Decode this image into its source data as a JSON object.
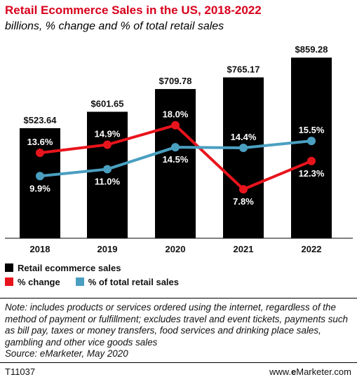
{
  "title": "Retail Ecommerce Sales in the US, 2018-2022",
  "subtitle": "billions, % change and % of total retail sales",
  "chart_data": {
    "type": "bar",
    "categories": [
      "2018",
      "2019",
      "2020",
      "2021",
      "2022"
    ],
    "bars": {
      "name": "Retail ecommerce sales",
      "color": "#000000",
      "values": [
        523.64,
        601.65,
        709.78,
        765.17,
        859.28
      ],
      "labels": [
        "$523.64",
        "$601.65",
        "$709.78",
        "$765.17",
        "$859.28"
      ]
    },
    "lines": [
      {
        "name": "% change",
        "color": "#e8141c",
        "values": [
          13.6,
          14.9,
          18.0,
          7.8,
          12.3
        ],
        "labels": [
          "13.6%",
          "14.9%",
          "18.0%",
          "7.8%",
          "12.3%"
        ]
      },
      {
        "name": "% of total retail sales",
        "color": "#4a9fc1",
        "values": [
          9.9,
          11.0,
          14.5,
          14.4,
          15.5
        ],
        "labels": [
          "9.9%",
          "11.0%",
          "14.5%",
          "14.4%",
          "15.5%"
        ]
      }
    ],
    "ylim": [
      0,
      900
    ],
    "line_ylim": [
      0,
      25
    ]
  },
  "legend": {
    "items": [
      {
        "label": "Retail ecommerce sales",
        "color": "#000000"
      },
      {
        "label": "% change",
        "color": "#e8141c"
      },
      {
        "label": "% of total retail sales",
        "color": "#4a9fc1"
      }
    ]
  },
  "note": "Note: includes products or services ordered using the internet, regardless of the method of payment or fulfillment; excludes travel and event tickets, payments such as bill pay, taxes or money transfers, food services and drinking place sales, gambling and other vice goods sales",
  "source": "Source: eMarketer, May 2020",
  "footer": {
    "id": "T11037",
    "site_prefix": "www.",
    "site_brand": "e",
    "site_rest": "Marketer.com"
  }
}
